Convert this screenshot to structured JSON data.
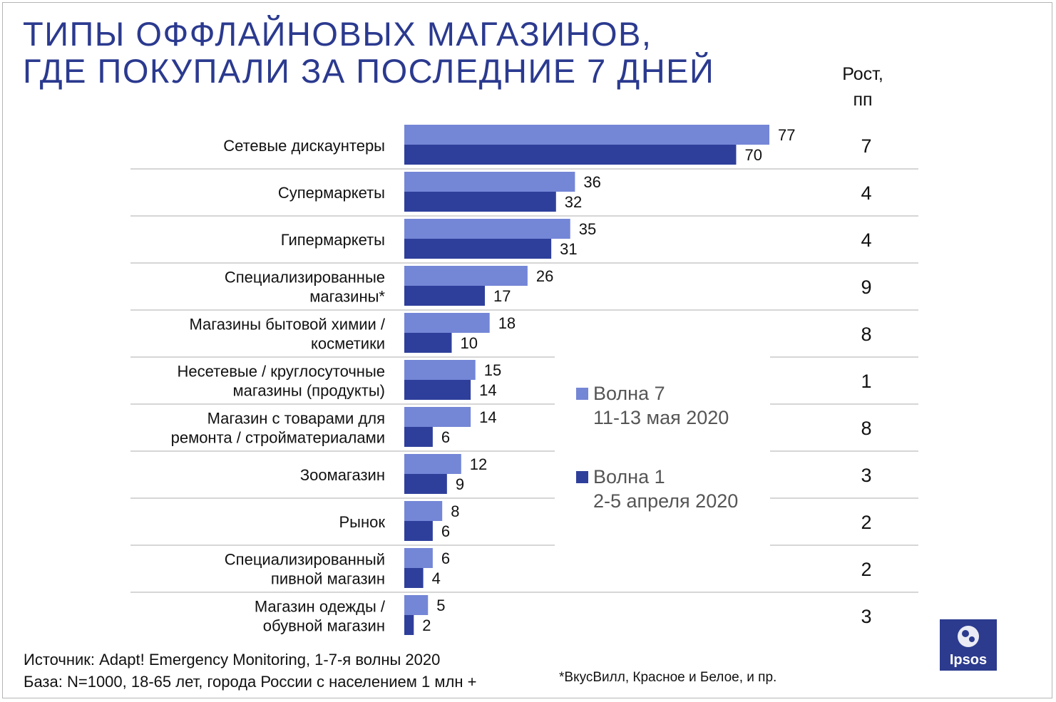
{
  "title_line1": "ТИПЫ ОФФЛАЙНОВЫХ МАГАЗИНОВ,",
  "title_line2": "ГДЕ ПОКУПАЛИ ЗА ПОСЛЕДНИЕ 7 ДНЕЙ",
  "growth_header_line1": "Рост,",
  "growth_header_line2": "пп",
  "legend": {
    "wave7_line1": "Волна 7",
    "wave7_line2": "11-13 мая 2020",
    "wave1_line1": "Волна 1",
    "wave1_line2": "2-5 апреля 2020"
  },
  "source_line1": "Источник: Adapt! Emergency Monitoring, 1-7-я волны 2020",
  "source_line2": "База: N=1000, 18-65 лет, города России с населением 1 млн +",
  "footnote": "*ВкусВилл, Красное и Белое, и пр.",
  "logo_text": "Ipsos",
  "colors": {
    "title": "#2b3a8f",
    "wave7": "#7486d6",
    "wave1": "#2e3f9b",
    "separator": "#c8c8c8",
    "logo": "#2c3b8e"
  },
  "chart_data": {
    "type": "bar",
    "orientation": "horizontal",
    "categories": [
      [
        "Сетевые дискаунтеры"
      ],
      [
        "Супермаркеты"
      ],
      [
        "Гипермаркеты"
      ],
      [
        "Специализированные",
        "магазины*"
      ],
      [
        "Магазины бытовой химии /",
        "косметики"
      ],
      [
        "Несетевые / круглосуточные",
        "магазины (продукты)"
      ],
      [
        "Магазин с товарами для",
        "ремонта / стройматериалами"
      ],
      [
        "Зоомагазин"
      ],
      [
        "Рынок"
      ],
      [
        "Специализированный",
        "пивной магазин"
      ],
      [
        "Магазин одежды /",
        "обувной магазин"
      ]
    ],
    "series": [
      {
        "name": "Волна 7 11-13 мая 2020",
        "values": [
          77,
          36,
          35,
          26,
          18,
          15,
          14,
          12,
          8,
          6,
          5
        ]
      },
      {
        "name": "Волна 1 2-5 апреля 2020",
        "values": [
          70,
          32,
          31,
          17,
          10,
          14,
          6,
          9,
          6,
          4,
          2
        ]
      }
    ],
    "growth": [
      7,
      4,
      4,
      9,
      8,
      1,
      8,
      3,
      2,
      2,
      3
    ],
    "xlim": [
      0,
      77
    ],
    "grid": false,
    "legend_position": "right"
  }
}
